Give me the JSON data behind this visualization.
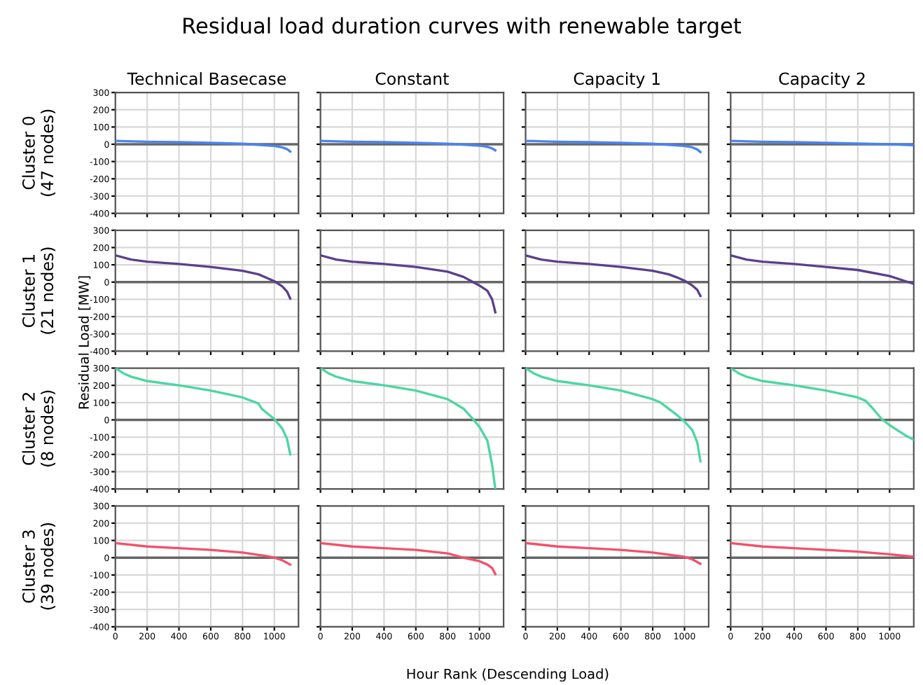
{
  "chart_data": [
    {
      "type": "line",
      "title": "Technical Basecase",
      "ylabel": "Cluster 0\n(47 nodes)",
      "annotations": [
        "Residual load duration curves with renewable target",
        "Hour Rank (Descending Load)",
        "Residual Load [MW]"
      ],
      "series": [
        {
          "color": "#4a84ef",
          "x": [
            0,
            200,
            400,
            600,
            800,
            900,
            1000,
            1050,
            1080,
            1100
          ],
          "values": [
            20,
            15,
            12,
            8,
            3,
            -3,
            -10,
            -18,
            -28,
            -42
          ]
        }
      ],
      "xlim": [
        0,
        1152
      ],
      "xticks": [
        0,
        200,
        400,
        600,
        800,
        1000
      ],
      "ylim": [
        -400,
        300
      ],
      "yticks": [
        -400,
        -300,
        -200,
        -100,
        0,
        100,
        200,
        300
      ],
      "grid": true,
      "tick_labels": "y",
      "ref_lines": [
        {
          "axis": "y",
          "value": 0,
          "color": "#666666"
        }
      ]
    },
    {
      "type": "line",
      "title": "Constant",
      "series": [
        {
          "color": "#4a84ef",
          "x": [
            0,
            200,
            400,
            600,
            800,
            900,
            1000,
            1050,
            1080,
            1100
          ],
          "values": [
            20,
            15,
            12,
            8,
            3,
            -2,
            -8,
            -15,
            -24,
            -35
          ]
        }
      ],
      "xlim": [
        0,
        1152
      ],
      "xticks": [
        0,
        200,
        400,
        600,
        800,
        1000
      ],
      "ylim": [
        -400,
        300
      ],
      "yticks": [
        -400,
        -300,
        -200,
        -100,
        0,
        100,
        200,
        300
      ],
      "grid": true,
      "tick_labels": false,
      "ref_lines": [
        {
          "axis": "y",
          "value": 0,
          "color": "#666666"
        }
      ]
    },
    {
      "type": "line",
      "title": "Capacity 1",
      "series": [
        {
          "color": "#4a84ef",
          "x": [
            0,
            200,
            400,
            600,
            800,
            900,
            1000,
            1050,
            1080,
            1100
          ],
          "values": [
            20,
            15,
            12,
            8,
            3,
            -3,
            -10,
            -18,
            -30,
            -45
          ]
        }
      ],
      "xlim": [
        0,
        1152
      ],
      "xticks": [
        0,
        200,
        400,
        600,
        800,
        1000
      ],
      "ylim": [
        -400,
        300
      ],
      "yticks": [
        -400,
        -300,
        -200,
        -100,
        0,
        100,
        200,
        300
      ],
      "grid": true,
      "tick_labels": false,
      "ref_lines": [
        {
          "axis": "y",
          "value": 0,
          "color": "#666666"
        }
      ]
    },
    {
      "type": "line",
      "title": "Capacity 2",
      "series": [
        {
          "color": "#4a84ef",
          "x": [
            0,
            200,
            400,
            600,
            800,
            1000,
            1152
          ],
          "values": [
            20,
            15,
            12,
            8,
            4,
            0,
            -5
          ]
        }
      ],
      "xlim": [
        0,
        1152
      ],
      "xticks": [
        0,
        200,
        400,
        600,
        800,
        1000
      ],
      "ylim": [
        -400,
        300
      ],
      "yticks": [
        -400,
        -300,
        -200,
        -100,
        0,
        100,
        200,
        300
      ],
      "grid": true,
      "tick_labels": false,
      "ref_lines": [
        {
          "axis": "y",
          "value": 0,
          "color": "#666666"
        }
      ]
    },
    {
      "type": "line",
      "ylabel": "Cluster 1\n(21 nodes)",
      "series": [
        {
          "color": "#5b3f8c",
          "x": [
            0,
            100,
            200,
            400,
            600,
            800,
            900,
            950,
            1000,
            1050,
            1080,
            1100
          ],
          "values": [
            155,
            130,
            118,
            105,
            88,
            65,
            45,
            25,
            5,
            -25,
            -55,
            -95
          ]
        }
      ],
      "xlim": [
        0,
        1152
      ],
      "xticks": [
        0,
        200,
        400,
        600,
        800,
        1000
      ],
      "ylim": [
        -400,
        300
      ],
      "yticks": [
        -400,
        -300,
        -200,
        -100,
        0,
        100,
        200,
        300
      ],
      "grid": true,
      "tick_labels": "y",
      "ref_lines": [
        {
          "axis": "y",
          "value": 0,
          "color": "#666666"
        }
      ]
    },
    {
      "type": "line",
      "series": [
        {
          "color": "#5b3f8c",
          "x": [
            0,
            100,
            200,
            400,
            600,
            800,
            900,
            950,
            1000,
            1050,
            1080,
            1100
          ],
          "values": [
            155,
            130,
            118,
            105,
            88,
            60,
            30,
            5,
            -20,
            -50,
            -100,
            -175
          ]
        }
      ],
      "xlim": [
        0,
        1152
      ],
      "xticks": [
        0,
        200,
        400,
        600,
        800,
        1000
      ],
      "ylim": [
        -400,
        300
      ],
      "yticks": [
        -400,
        -300,
        -200,
        -100,
        0,
        100,
        200,
        300
      ],
      "grid": true,
      "tick_labels": false,
      "ref_lines": [
        {
          "axis": "y",
          "value": 0,
          "color": "#666666"
        }
      ]
    },
    {
      "type": "line",
      "series": [
        {
          "color": "#5b3f8c",
          "x": [
            0,
            100,
            200,
            400,
            600,
            800,
            900,
            950,
            1000,
            1050,
            1080,
            1100
          ],
          "values": [
            155,
            130,
            118,
            105,
            88,
            65,
            45,
            28,
            8,
            -20,
            -45,
            -80
          ]
        }
      ],
      "xlim": [
        0,
        1152
      ],
      "xticks": [
        0,
        200,
        400,
        600,
        800,
        1000
      ],
      "ylim": [
        -400,
        300
      ],
      "yticks": [
        -400,
        -300,
        -200,
        -100,
        0,
        100,
        200,
        300
      ],
      "grid": true,
      "tick_labels": false,
      "ref_lines": [
        {
          "axis": "y",
          "value": 0,
          "color": "#666666"
        }
      ]
    },
    {
      "type": "line",
      "series": [
        {
          "color": "#5b3f8c",
          "x": [
            0,
            100,
            200,
            400,
            600,
            800,
            1000,
            1100,
            1152
          ],
          "values": [
            155,
            130,
            118,
            105,
            88,
            70,
            35,
            5,
            -10
          ]
        }
      ],
      "xlim": [
        0,
        1152
      ],
      "xticks": [
        0,
        200,
        400,
        600,
        800,
        1000
      ],
      "ylim": [
        -400,
        300
      ],
      "yticks": [
        -400,
        -300,
        -200,
        -100,
        0,
        100,
        200,
        300
      ],
      "grid": true,
      "tick_labels": false,
      "ref_lines": [
        {
          "axis": "y",
          "value": 0,
          "color": "#666666"
        }
      ]
    },
    {
      "type": "line",
      "ylabel": "Cluster 2\n(8 nodes)",
      "series": [
        {
          "color": "#4cd6a2",
          "x": [
            0,
            50,
            100,
            200,
            400,
            600,
            800,
            900,
            920,
            1000,
            1050,
            1080,
            1100
          ],
          "values": [
            300,
            270,
            250,
            225,
            200,
            170,
            130,
            95,
            65,
            5,
            -50,
            -110,
            -200
          ]
        }
      ],
      "xlim": [
        0,
        1152
      ],
      "xticks": [
        0,
        200,
        400,
        600,
        800,
        1000
      ],
      "ylim": [
        -400,
        300
      ],
      "yticks": [
        -400,
        -300,
        -200,
        -100,
        0,
        100,
        200,
        300
      ],
      "grid": true,
      "tick_labels": "y",
      "ref_lines": [
        {
          "axis": "y",
          "value": 0,
          "color": "#666666"
        }
      ]
    },
    {
      "type": "line",
      "series": [
        {
          "color": "#4cd6a2",
          "x": [
            0,
            50,
            100,
            200,
            400,
            600,
            800,
            900,
            950,
            1000,
            1050,
            1080,
            1100
          ],
          "values": [
            300,
            270,
            250,
            225,
            200,
            170,
            120,
            65,
            15,
            -40,
            -120,
            -260,
            -400
          ]
        }
      ],
      "xlim": [
        0,
        1152
      ],
      "xticks": [
        0,
        200,
        400,
        600,
        800,
        1000
      ],
      "ylim": [
        -400,
        300
      ],
      "yticks": [
        -400,
        -300,
        -200,
        -100,
        0,
        100,
        200,
        300
      ],
      "grid": true,
      "tick_labels": false,
      "ref_lines": [
        {
          "axis": "y",
          "value": 0,
          "color": "#666666"
        }
      ]
    },
    {
      "type": "line",
      "series": [
        {
          "color": "#4cd6a2",
          "x": [
            0,
            50,
            100,
            200,
            400,
            600,
            800,
            850,
            950,
            1000,
            1050,
            1080,
            1100
          ],
          "values": [
            300,
            270,
            250,
            225,
            200,
            170,
            120,
            100,
            30,
            -10,
            -60,
            -130,
            -240
          ]
        }
      ],
      "xlim": [
        0,
        1152
      ],
      "xticks": [
        0,
        200,
        400,
        600,
        800,
        1000
      ],
      "ylim": [
        -400,
        300
      ],
      "yticks": [
        -400,
        -300,
        -200,
        -100,
        0,
        100,
        200,
        300
      ],
      "grid": true,
      "tick_labels": false,
      "ref_lines": [
        {
          "axis": "y",
          "value": 0,
          "color": "#666666"
        }
      ]
    },
    {
      "type": "line",
      "series": [
        {
          "color": "#4cd6a2",
          "x": [
            0,
            50,
            100,
            200,
            400,
            600,
            800,
            850,
            900,
            950,
            1000,
            1050,
            1100,
            1152
          ],
          "values": [
            300,
            270,
            250,
            225,
            200,
            170,
            130,
            110,
            60,
            5,
            -30,
            -60,
            -90,
            -115
          ]
        }
      ],
      "xlim": [
        0,
        1152
      ],
      "xticks": [
        0,
        200,
        400,
        600,
        800,
        1000
      ],
      "ylim": [
        -400,
        300
      ],
      "yticks": [
        -400,
        -300,
        -200,
        -100,
        0,
        100,
        200,
        300
      ],
      "grid": true,
      "tick_labels": false,
      "ref_lines": [
        {
          "axis": "y",
          "value": 0,
          "color": "#666666"
        }
      ]
    },
    {
      "type": "line",
      "ylabel": "Cluster 3\n(39 nodes)",
      "series": [
        {
          "color": "#f2516b",
          "x": [
            0,
            200,
            400,
            600,
            800,
            950,
            1000,
            1050,
            1100
          ],
          "values": [
            85,
            65,
            55,
            45,
            30,
            10,
            0,
            -15,
            -40
          ]
        }
      ],
      "xlim": [
        0,
        1152
      ],
      "xticks": [
        0,
        200,
        400,
        600,
        800,
        1000
      ],
      "ylim": [
        -400,
        300
      ],
      "yticks": [
        -400,
        -300,
        -200,
        -100,
        0,
        100,
        200,
        300
      ],
      "grid": true,
      "tick_labels": "xy",
      "ref_lines": [
        {
          "axis": "y",
          "value": 0,
          "color": "#666666"
        }
      ]
    },
    {
      "type": "line",
      "series": [
        {
          "color": "#f2516b",
          "x": [
            0,
            200,
            400,
            600,
            800,
            900,
            1000,
            1050,
            1080,
            1100
          ],
          "values": [
            85,
            65,
            55,
            45,
            25,
            0,
            -20,
            -40,
            -60,
            -95
          ]
        }
      ],
      "xlim": [
        0,
        1152
      ],
      "xticks": [
        0,
        200,
        400,
        600,
        800,
        1000
      ],
      "ylim": [
        -400,
        300
      ],
      "yticks": [
        -400,
        -300,
        -200,
        -100,
        0,
        100,
        200,
        300
      ],
      "grid": true,
      "tick_labels": "x",
      "ref_lines": [
        {
          "axis": "y",
          "value": 0,
          "color": "#666666"
        }
      ]
    },
    {
      "type": "line",
      "series": [
        {
          "color": "#f2516b",
          "x": [
            0,
            200,
            400,
            600,
            800,
            1000,
            1050,
            1100
          ],
          "values": [
            85,
            65,
            55,
            45,
            30,
            5,
            -10,
            -35
          ]
        }
      ],
      "xlim": [
        0,
        1152
      ],
      "xticks": [
        0,
        200,
        400,
        600,
        800,
        1000
      ],
      "ylim": [
        -400,
        300
      ],
      "yticks": [
        -400,
        -300,
        -200,
        -100,
        0,
        100,
        200,
        300
      ],
      "grid": true,
      "tick_labels": "x",
      "ref_lines": [
        {
          "axis": "y",
          "value": 0,
          "color": "#666666"
        }
      ]
    },
    {
      "type": "line",
      "series": [
        {
          "color": "#f2516b",
          "x": [
            0,
            200,
            400,
            600,
            800,
            1000,
            1152
          ],
          "values": [
            85,
            65,
            55,
            45,
            35,
            20,
            5
          ]
        }
      ],
      "xlim": [
        0,
        1152
      ],
      "xticks": [
        0,
        200,
        400,
        600,
        800,
        1000
      ],
      "ylim": [
        -400,
        300
      ],
      "yticks": [
        -400,
        -300,
        -200,
        -100,
        0,
        100,
        200,
        300
      ],
      "grid": true,
      "tick_labels": "x",
      "ref_lines": [
        {
          "axis": "y",
          "value": 0,
          "color": "#666666"
        }
      ]
    }
  ]
}
